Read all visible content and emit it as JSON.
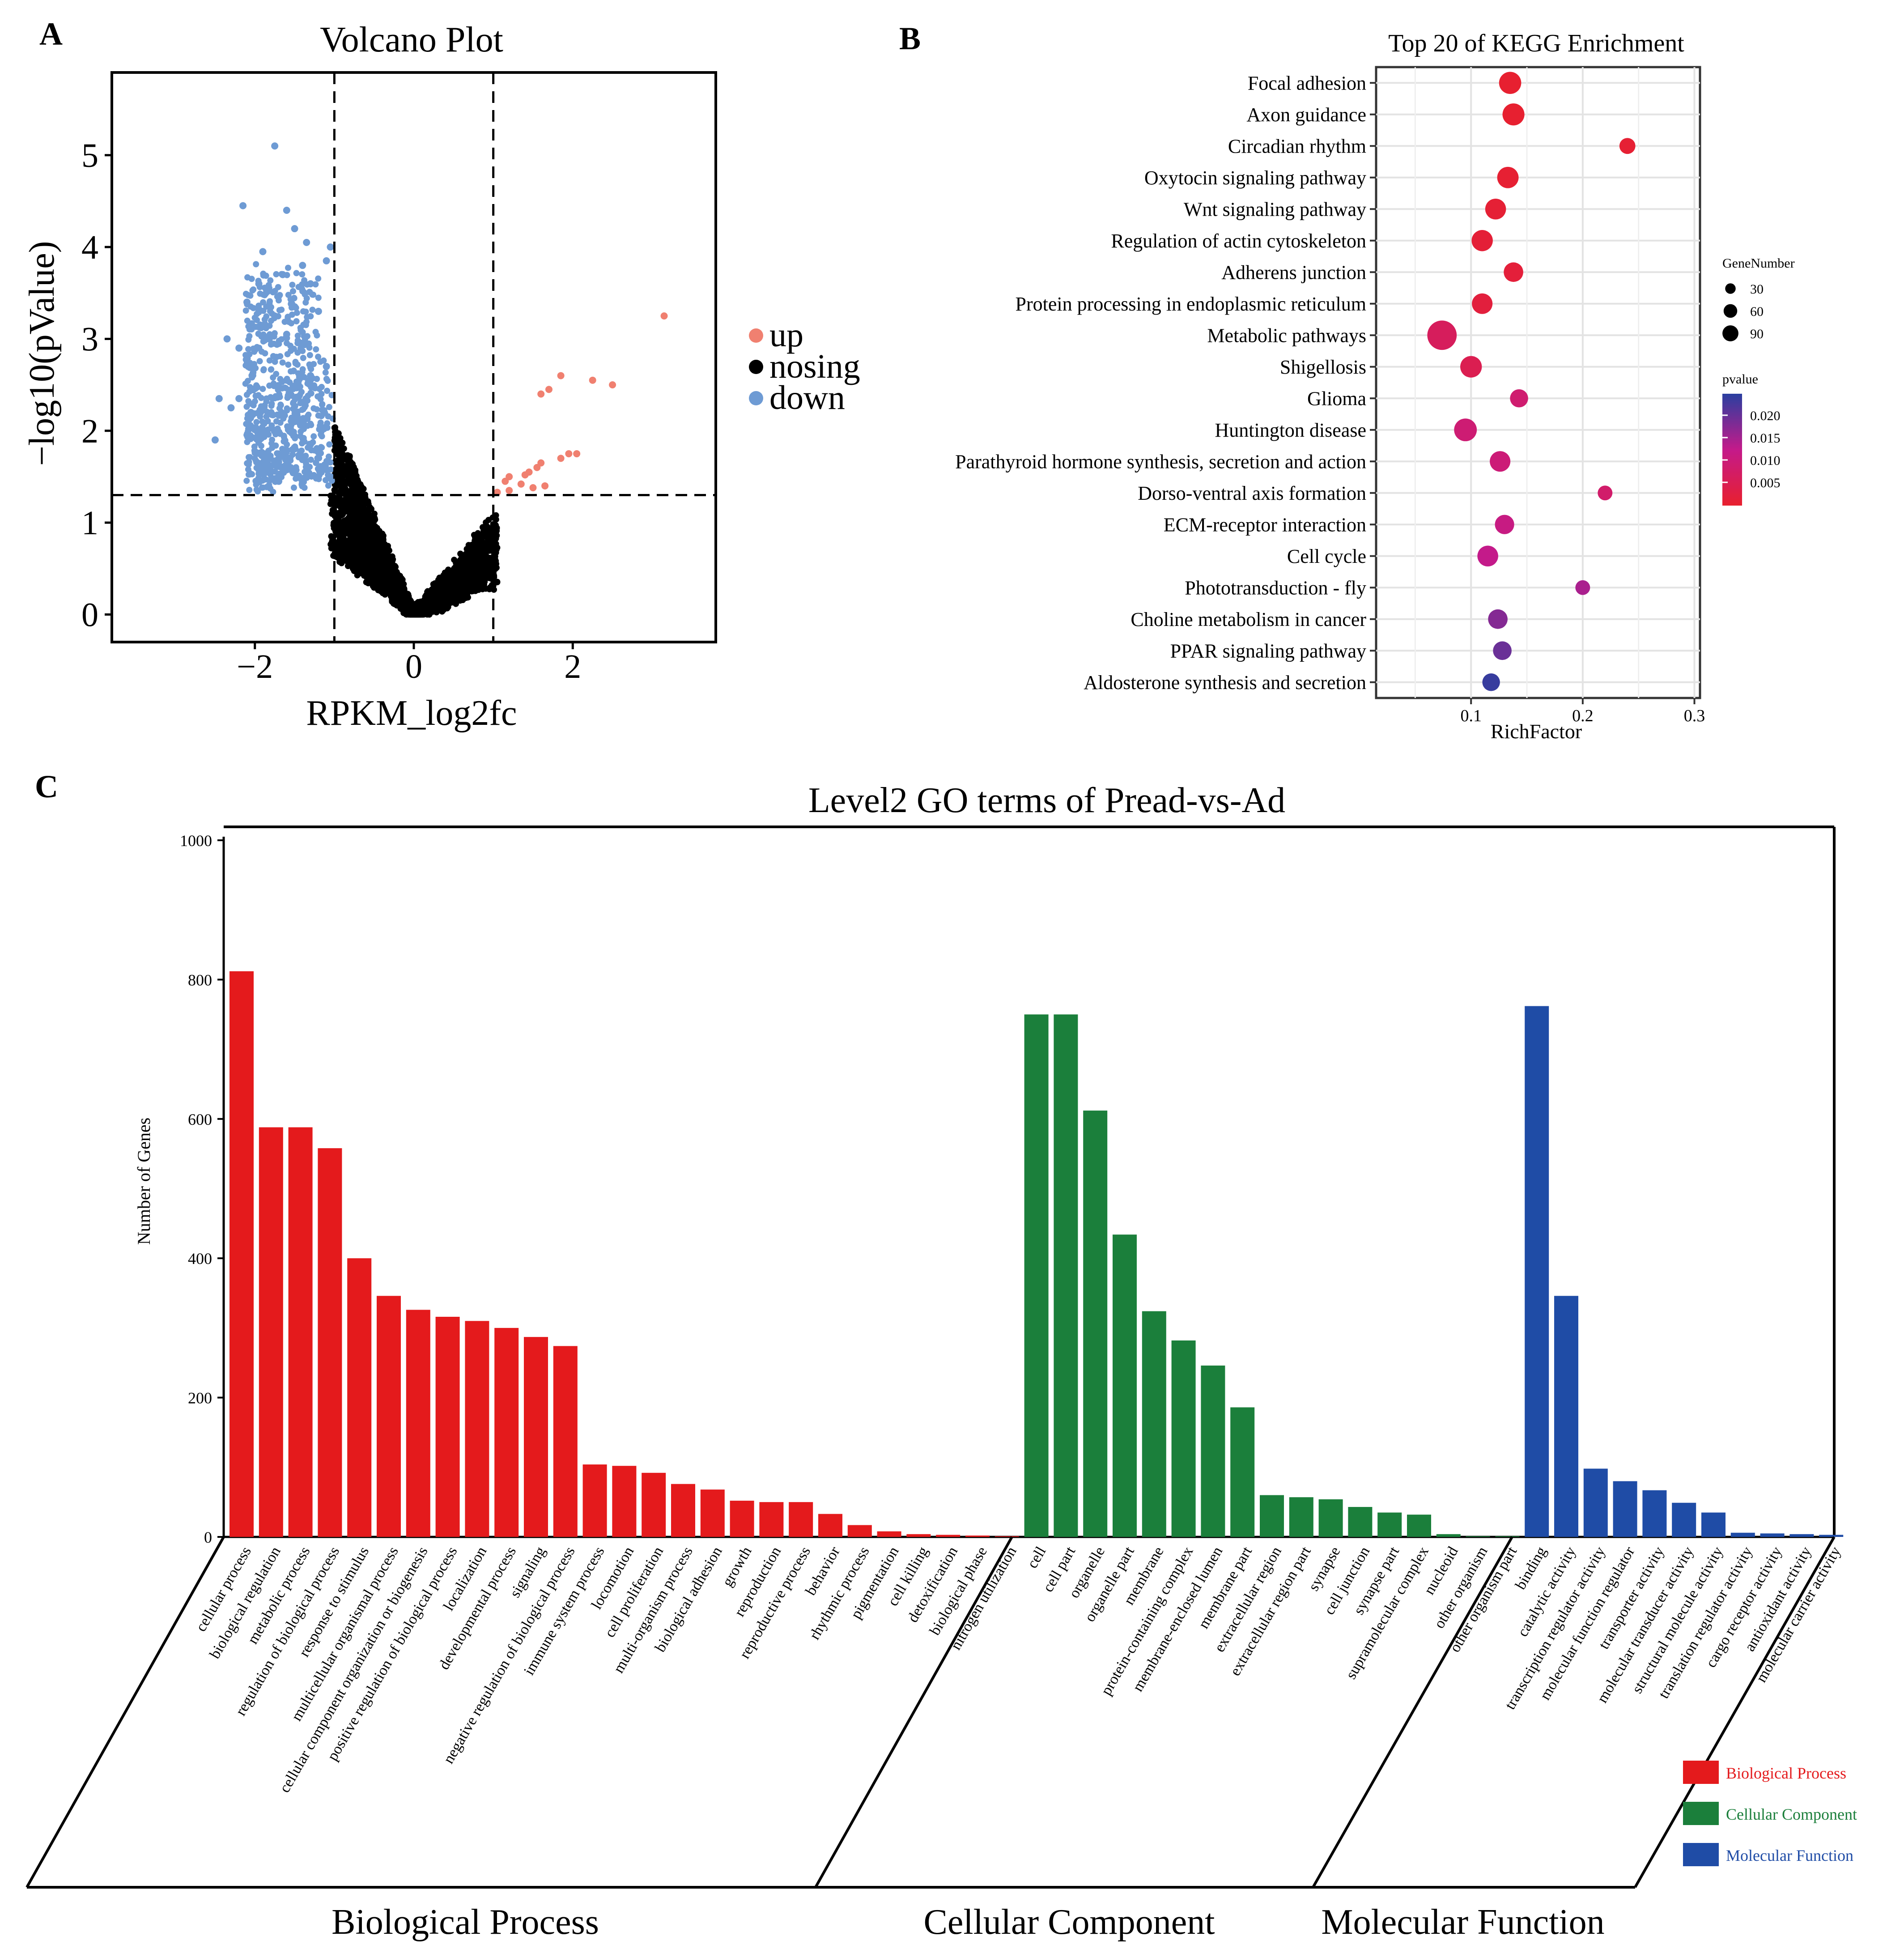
{
  "panels": {
    "a": "A",
    "b": "B",
    "c": "C"
  },
  "colors": {
    "up": "#F08070",
    "nosing": "#000000",
    "down": "#6E9BD4",
    "bp": "#E41A1C",
    "cc": "#1B7F3B",
    "mf": "#1F4CA6",
    "pval_high": "#2A3FA0",
    "pval_mid": "#C41A8A",
    "pval_low": "#E8202E"
  },
  "chart_data": [
    {
      "id": "volcano",
      "type": "scatter",
      "title": "Volcano Plot",
      "xlabel": "RPKM_log2fc",
      "ylabel": "−log10(pValue)",
      "xlim": [
        -3.8,
        3.8
      ],
      "ylim": [
        -0.3,
        5.9
      ],
      "xticks": [
        -2,
        0,
        2
      ],
      "xtick_labels": [
        "−2",
        "0",
        "2"
      ],
      "yticks": [
        0,
        1,
        2,
        3,
        4,
        5
      ],
      "thresholds": {
        "x": [
          -1,
          1
        ],
        "y": 1.3
      },
      "legend": {
        "position": "right",
        "labels": [
          "up",
          "nosing",
          "down"
        ]
      },
      "series": [
        {
          "name": "up",
          "points": [
            [
              3.15,
              3.25
            ],
            [
              2.5,
              2.5
            ],
            [
              2.25,
              2.55
            ],
            [
              1.85,
              2.6
            ],
            [
              1.7,
              2.45
            ],
            [
              1.6,
              2.4
            ],
            [
              1.95,
              1.75
            ],
            [
              2.05,
              1.75
            ],
            [
              1.85,
              1.7
            ],
            [
              1.6,
              1.65
            ],
            [
              1.55,
              1.6
            ],
            [
              1.45,
              1.55
            ],
            [
              1.4,
              1.52
            ],
            [
              1.2,
              1.5
            ],
            [
              1.15,
              1.45
            ],
            [
              1.35,
              1.42
            ],
            [
              1.5,
              1.38
            ],
            [
              1.2,
              1.35
            ],
            [
              1.65,
              1.4
            ],
            [
              1.05,
              1.33
            ]
          ]
        },
        {
          "name": "down",
          "points": [
            [
              -1.75,
              5.1
            ],
            [
              -2.15,
              4.45
            ],
            [
              -1.6,
              4.4
            ],
            [
              -1.5,
              4.2
            ],
            [
              -1.35,
              4.05
            ],
            [
              -1.05,
              4.0
            ],
            [
              -1.9,
              3.95
            ],
            [
              -1.4,
              3.8
            ],
            [
              -1.1,
              3.85
            ],
            [
              -1.65,
              3.7
            ],
            [
              -1.3,
              3.6
            ],
            [
              -1.95,
              3.6
            ],
            [
              -2.1,
              3.4
            ],
            [
              -1.5,
              3.35
            ],
            [
              -1.2,
              3.3
            ],
            [
              -1.75,
              3.25
            ],
            [
              -2.35,
              3.0
            ],
            [
              -2.2,
              2.9
            ],
            [
              -1.6,
              3.05
            ],
            [
              -1.4,
              2.95
            ],
            [
              -2.45,
              2.35
            ],
            [
              -2.2,
              2.35
            ],
            [
              -2.3,
              2.25
            ],
            [
              -2.05,
              2.2
            ],
            [
              -2.5,
              1.9
            ],
            [
              -1.85,
              2.0
            ],
            [
              -1.6,
              2.55
            ],
            [
              -1.3,
              2.6
            ],
            [
              -1.1,
              2.7
            ],
            [
              -1.5,
              2.1
            ],
            [
              -1.2,
              1.8
            ],
            [
              -1.35,
              1.55
            ],
            [
              -1.05,
              1.5
            ],
            [
              -1.7,
              1.45
            ],
            [
              -1.9,
              1.65
            ]
          ]
        }
      ]
    },
    {
      "id": "kegg",
      "type": "scatter",
      "title": "Top 20 of KEGG Enrichment",
      "xlabel": "RichFactor",
      "xlim": [
        0.015,
        0.305
      ],
      "xticks": [
        0.1,
        0.2,
        0.3
      ],
      "xtick_labels": [
        "0.1",
        "0.2",
        "0.3"
      ],
      "categories": [
        "Focal adhesion",
        "Axon guidance",
        "Circadian rhythm",
        "Oxytocin signaling pathway",
        "Wnt signaling pathway",
        "Regulation of actin cytoskeleton",
        "Adherens junction",
        "Protein processing in endoplasmic reticulum",
        "Metabolic pathways",
        "Shigellosis",
        "Glioma",
        "Huntington disease",
        "Parathyroid hormone synthesis, secretion and action",
        "Dorso-ventral axis formation",
        "ECM-receptor interaction",
        "Cell cycle",
        "Phototransduction - fly",
        "Choline metabolism in cancer",
        "PPAR signaling pathway",
        "Aldosterone synthesis and secretion"
      ],
      "rich_factor": [
        0.135,
        0.138,
        0.24,
        0.133,
        0.122,
        0.11,
        0.138,
        0.11,
        0.074,
        0.1,
        0.143,
        0.095,
        0.126,
        0.22,
        0.13,
        0.115,
        0.2,
        0.124,
        0.128,
        0.118
      ],
      "gene_number": [
        45,
        44,
        18,
        41,
        38,
        40,
        32,
        37,
        92,
        42,
        26,
        48,
        37,
        14,
        31,
        38,
        14,
        32,
        28,
        24
      ],
      "pvalue": [
        0.0002,
        0.0003,
        0.0008,
        0.0006,
        0.0009,
        0.0012,
        0.0015,
        0.002,
        0.006,
        0.0045,
        0.0085,
        0.009,
        0.0095,
        0.0078,
        0.011,
        0.012,
        0.014,
        0.017,
        0.019,
        0.023
      ],
      "legend": {
        "position": "right",
        "size_title": "GeneNumber",
        "size_labels": [
          "30",
          "60",
          "90"
        ],
        "color_title": "pvalue",
        "color_labels": [
          "0.020",
          "0.015",
          "0.010",
          "0.005"
        ]
      }
    },
    {
      "id": "go",
      "type": "bar",
      "title": "Level2 GO terms of Pread-vs-Ad",
      "ylabel": "Number of Genes",
      "ylim": [
        0,
        1000
      ],
      "yticks": [
        0,
        200,
        400,
        600,
        800,
        1000
      ],
      "groups": [
        {
          "name": "Biological Process",
          "terms": [
            "cellular process",
            "biological regulation",
            "metabolic process",
            "regulation of biological process",
            "response to stimulus",
            "multicellular organismal process",
            "cellular component organization or biogenesis",
            "positive regulation of biological process",
            "localization",
            "developmental process",
            "signaling",
            "negative regulation of biological process",
            "immune system process",
            "locomotion",
            "cell proliferation",
            "multi-organism process",
            "biological adhesion",
            "growth",
            "reproduction",
            "reproductive process",
            "behavior",
            "rhythmic process",
            "pigmentation",
            "cell killing",
            "detoxification",
            "biological phase",
            "nitrogen utilization"
          ],
          "values": [
            812,
            588,
            588,
            558,
            400,
            346,
            326,
            316,
            310,
            300,
            287,
            274,
            104,
            102,
            92,
            76,
            68,
            52,
            50,
            50,
            33,
            17,
            8,
            4,
            3,
            2,
            1
          ]
        },
        {
          "name": "Cellular Component",
          "terms": [
            "cell",
            "cell part",
            "organelle",
            "organelle part",
            "membrane",
            "protein-containing complex",
            "membrane-enclosed lumen",
            "membrane part",
            "extracellular region",
            "extracellular region part",
            "synapse",
            "cell junction",
            "synapse part",
            "supramolecular complex",
            "nucleoid",
            "other organism",
            "other organism part"
          ],
          "values": [
            750,
            750,
            612,
            434,
            324,
            282,
            246,
            186,
            60,
            57,
            54,
            43,
            35,
            32,
            4,
            1,
            1
          ]
        },
        {
          "name": "Molecular Function",
          "terms": [
            "binding",
            "catalytic activity",
            "transcription regulator activity",
            "molecular function regulator",
            "transporter activity",
            "molecular transducer activity",
            "structural molecule activity",
            "translation regulator activity",
            "cargo receptor activity",
            "antioxidant activity",
            "molecular carrier activity"
          ],
          "values": [
            762,
            346,
            98,
            80,
            67,
            49,
            35,
            6,
            5,
            4,
            3
          ]
        }
      ],
      "legend": {
        "position": "bottom-right",
        "labels": [
          "Biological Process",
          "Cellular Component",
          "Molecular Function"
        ]
      }
    }
  ]
}
